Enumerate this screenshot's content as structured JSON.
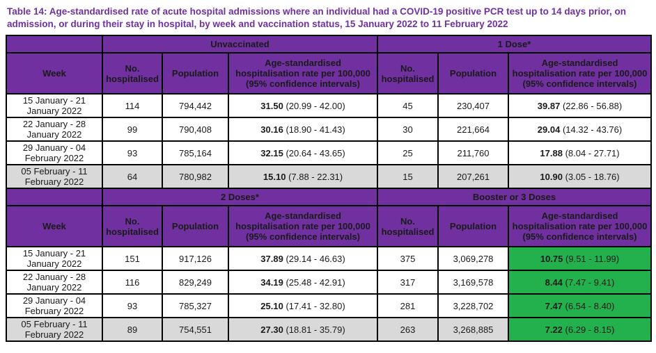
{
  "title": "Table 14: Age-standardised rate of acute hospital admissions where an individual had a COVID-19 positive PCR test up to 14 days prior, on admission, or during their stay in hospital, by week and vaccination status, 15 January 2022 to 11 February 2022",
  "colors": {
    "header_purple": "#7030A0",
    "highlight_green": "#22B14C",
    "shaded_row_gray": "#D9D9D9",
    "title_purple": "#7030A0"
  },
  "column_headers": {
    "week": "Week",
    "hospitalised": "No. hospitalised",
    "population": "Population",
    "rate": "Age-standardised hospitalisation rate per 100,000 (95% confidence intervals)"
  },
  "sections": [
    {
      "left_group": "Unvaccinated",
      "right_group": "1 Dose*",
      "rows": [
        {
          "week": "15 January - 21 January 2022",
          "left": {
            "hospitalised": "114",
            "population": "794,442",
            "rate": "31.50",
            "ci": "(20.99 - 42.00)"
          },
          "right": {
            "hospitalised": "45",
            "population": "230,407",
            "rate": "39.87",
            "ci": "(22.86 - 56.88)"
          }
        },
        {
          "week": "22 January - 28 January 2022",
          "left": {
            "hospitalised": "99",
            "population": "790,408",
            "rate": "30.16",
            "ci": "(18.90 - 41.43)"
          },
          "right": {
            "hospitalised": "30",
            "population": "221,664",
            "rate": "29.04",
            "ci": "(14.32 - 43.76)"
          }
        },
        {
          "week": "29 January - 04 February 2022",
          "left": {
            "hospitalised": "93",
            "population": "785,164",
            "rate": "32.15",
            "ci": "(20.64 - 43.65)"
          },
          "right": {
            "hospitalised": "25",
            "population": "211,760",
            "rate": "17.88",
            "ci": "(8.04 - 27.71)"
          }
        },
        {
          "week": "05 February - 11 February 2022",
          "left": {
            "hospitalised": "64",
            "population": "780,982",
            "rate": "15.10",
            "ci": "(7.88 - 22.31)"
          },
          "right": {
            "hospitalised": "15",
            "population": "207,261",
            "rate": "10.90",
            "ci": "(3.05 - 18.76)"
          }
        }
      ]
    },
    {
      "left_group": "2 Doses*",
      "right_group": "Booster or 3 Doses",
      "rows": [
        {
          "week": "15 January - 21 January 2022",
          "left": {
            "hospitalised": "151",
            "population": "917,126",
            "rate": "37.89",
            "ci": "(29.14 - 46.63)"
          },
          "right": {
            "hospitalised": "375",
            "population": "3,069,278",
            "rate": "10.75",
            "ci": "(9.51 - 11.99)"
          }
        },
        {
          "week": "22 January - 28 January 2022",
          "left": {
            "hospitalised": "116",
            "population": "829,249",
            "rate": "34.19",
            "ci": "(25.48 - 42.91)"
          },
          "right": {
            "hospitalised": "317",
            "population": "3,169,578",
            "rate": "8.44",
            "ci": "(7.47 - 9.41)"
          }
        },
        {
          "week": "29 January - 04 February 2022",
          "left": {
            "hospitalised": "93",
            "population": "785,327",
            "rate": "25.10",
            "ci": "(17.41 - 32.80)"
          },
          "right": {
            "hospitalised": "281",
            "population": "3,228,702",
            "rate": "7.47",
            "ci": "(6.54 - 8.40)"
          }
        },
        {
          "week": "05 February - 11 February 2022",
          "left": {
            "hospitalised": "89",
            "population": "754,551",
            "rate": "27.30",
            "ci": "(18.81 - 35.79)"
          },
          "right": {
            "hospitalised": "263",
            "population": "3,268,885",
            "rate": "7.22",
            "ci": "(6.29 - 8.15)"
          }
        }
      ]
    }
  ]
}
